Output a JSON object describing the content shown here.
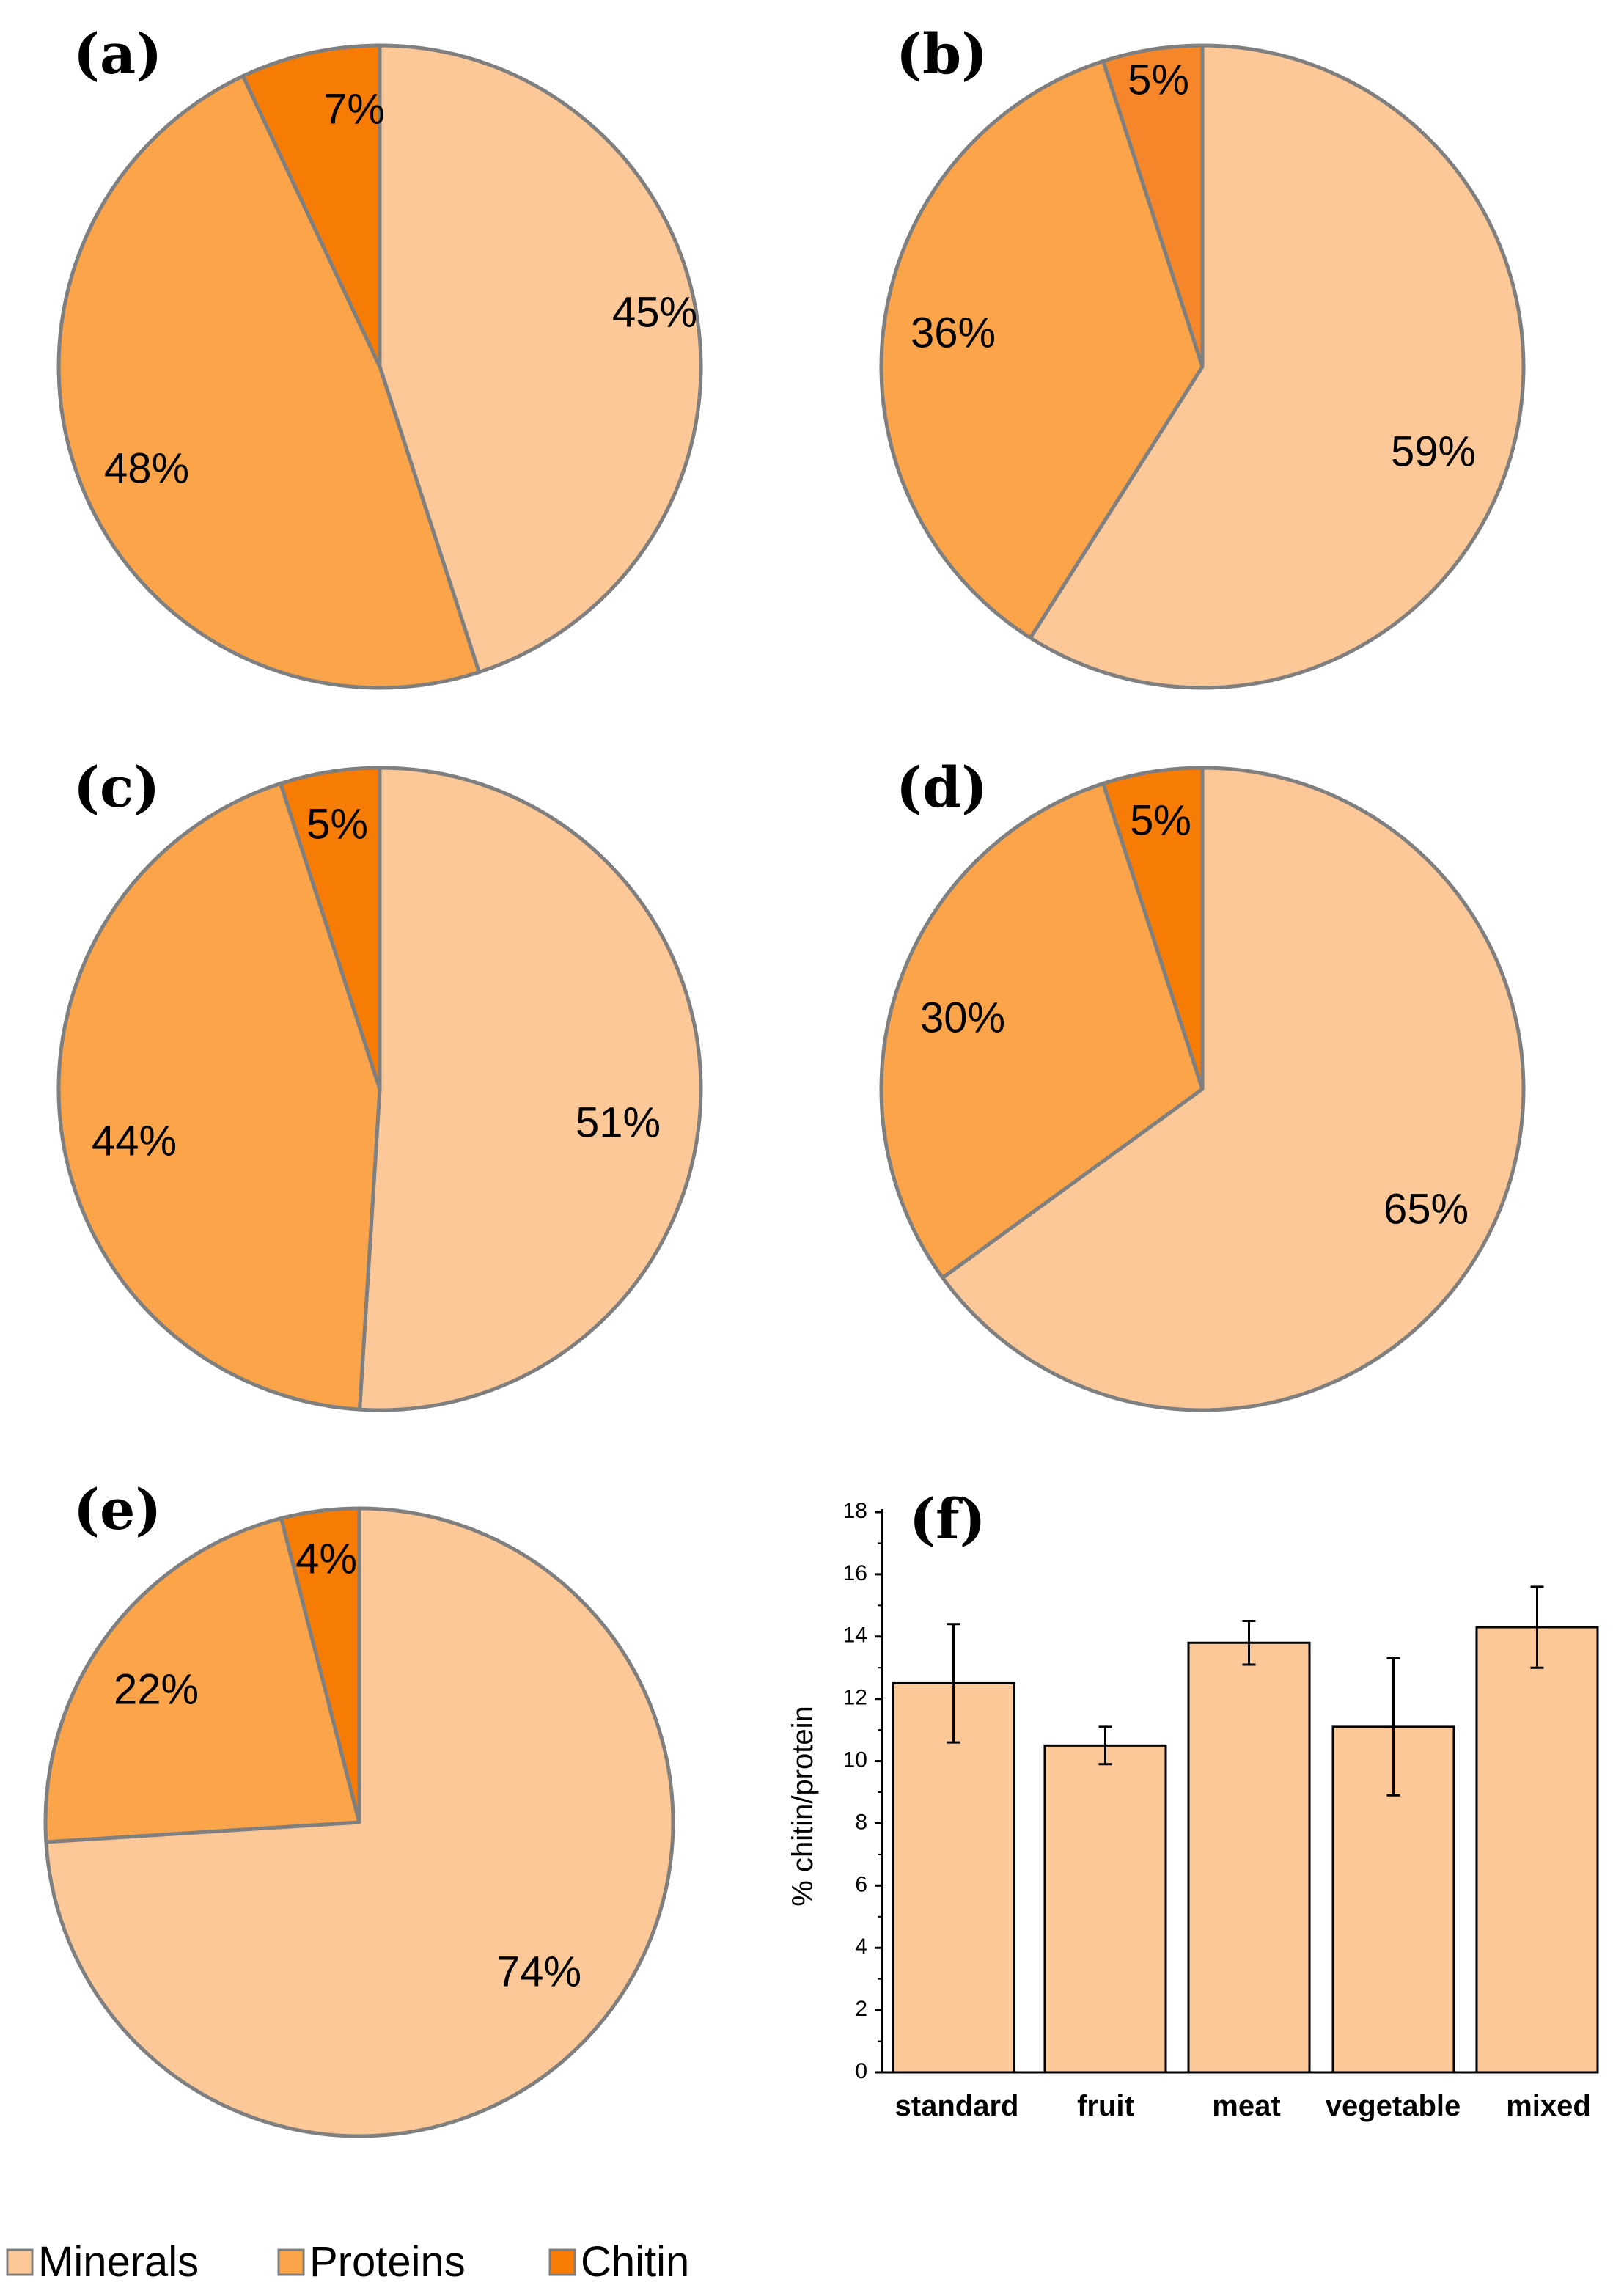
{
  "colors": {
    "minerals": "#FDC898",
    "proteins": "#FBA44A",
    "chitin": "#F67C06",
    "chitin_b": "#F5872A",
    "outline": "#7F7F7F",
    "bar_fill": "#FDC898",
    "bar_stroke": "#000000"
  },
  "chart_data": [
    {
      "type": "pie",
      "label": "(a)",
      "categories": [
        "Minerals",
        "Proteins",
        "Chitin"
      ],
      "values": [
        45,
        48,
        7
      ],
      "value_labels": [
        "45%",
        "48%",
        "7%"
      ]
    },
    {
      "type": "pie",
      "label": "(b)",
      "categories": [
        "Minerals",
        "Proteins",
        "Chitin"
      ],
      "values": [
        59,
        36,
        5
      ],
      "value_labels": [
        "59%",
        "36%",
        "5%"
      ]
    },
    {
      "type": "pie",
      "label": "(c)",
      "categories": [
        "Minerals",
        "Proteins",
        "Chitin"
      ],
      "values": [
        51,
        44,
        5
      ],
      "value_labels": [
        "51%",
        "44%",
        "5%"
      ]
    },
    {
      "type": "pie",
      "label": "(d)",
      "categories": [
        "Minerals",
        "Proteins",
        "Chitin"
      ],
      "values": [
        65,
        30,
        5
      ],
      "value_labels": [
        "65%",
        "30%",
        "5%"
      ]
    },
    {
      "type": "pie",
      "label": "(e)",
      "categories": [
        "Minerals",
        "Proteins",
        "Chitin"
      ],
      "values": [
        74,
        22,
        4
      ],
      "value_labels": [
        "74%",
        "22%",
        "4%"
      ]
    },
    {
      "type": "bar",
      "label": "(f)",
      "categories": [
        "standard",
        "fruit",
        "meat",
        "vegetable",
        "mixed"
      ],
      "values": [
        12.5,
        10.5,
        13.8,
        11.1,
        14.3
      ],
      "error": [
        1.9,
        0.6,
        0.7,
        2.2,
        1.3
      ],
      "ylabel": "% chitin/protein",
      "xlabel": "",
      "ylim": [
        0,
        18
      ],
      "yticks": [
        0,
        2,
        4,
        6,
        8,
        10,
        12,
        14,
        16,
        18
      ]
    }
  ],
  "legend": {
    "entries": [
      "Minerals",
      "Proteins",
      "Chitin"
    ]
  }
}
